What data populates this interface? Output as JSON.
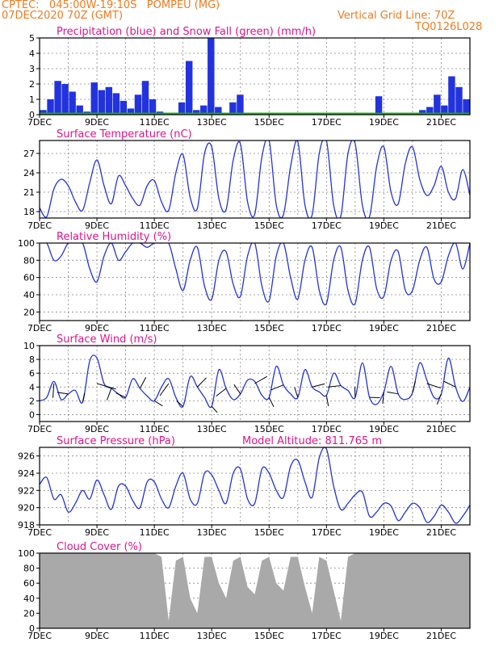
{
  "header": {
    "line1": "CPTEC:   045:00W-19:10S   POMPEU (MG)",
    "line2": "07DEC2020 70Z (GMT)",
    "right1": "Vertical Grid Line: 70Z",
    "right2": "TQ0126L028"
  },
  "colors": {
    "series": "#2233dd",
    "snow": "#22aa22",
    "cloud": "#a9a9a9",
    "title": "#e0148a",
    "header": "#f07a1e"
  },
  "x_labels": [
    "7DEC",
    "9DEC",
    "11DEC",
    "13DEC",
    "15DEC",
    "17DEC",
    "19DEC",
    "21DEC"
  ],
  "chart_data": [
    {
      "type": "bar",
      "title": "Precipitation (blue) and Snow Fall (green) (mm/h)",
      "ylim": [
        0,
        5
      ],
      "yticks": [
        0,
        1,
        2,
        3,
        4,
        5
      ],
      "x": [
        "7DEC",
        "7DEC",
        "7DEC",
        "8DEC",
        "8DEC",
        "8DEC",
        "8DEC",
        "9DEC",
        "9DEC",
        "9DEC",
        "9DEC",
        "10DEC",
        "10DEC",
        "10DEC",
        "10DEC",
        "11DEC",
        "11DEC",
        "11DEC",
        "11DEC",
        "12DEC",
        "12DEC",
        "12DEC",
        "12DEC",
        "13DEC",
        "13DEC",
        "13DEC",
        "13DEC",
        "14DEC",
        "14DEC",
        "14DEC",
        "14DEC",
        "15DEC",
        "15DEC",
        "15DEC",
        "15DEC",
        "16DEC",
        "16DEC",
        "16DEC",
        "16DEC",
        "17DEC",
        "17DEC",
        "17DEC",
        "17DEC",
        "18DEC",
        "18DEC",
        "18DEC",
        "18DEC",
        "19DEC",
        "19DEC",
        "19DEC",
        "19DEC",
        "20DEC",
        "20DEC",
        "20DEC",
        "20DEC",
        "21DEC",
        "21DEC",
        "21DEC",
        "21DEC"
      ],
      "values": [
        0.3,
        1.0,
        2.2,
        2.0,
        1.5,
        0.6,
        0.2,
        2.1,
        1.6,
        1.8,
        1.4,
        0.9,
        0.4,
        1.3,
        2.2,
        1.0,
        0.2,
        0,
        0,
        0.8,
        3.5,
        0.3,
        0.6,
        5.0,
        0.5,
        0,
        0.8,
        1.3,
        0,
        0,
        0,
        0,
        0,
        0,
        0,
        0,
        0,
        0,
        0,
        0,
        0,
        0,
        0,
        0,
        0,
        0,
        1.2,
        0,
        0,
        0,
        0,
        0,
        0.3,
        0.5,
        1.3,
        0.6,
        2.5,
        1.8,
        1.0
      ],
      "series": [
        {
          "name": "Precipitation (blue)"
        },
        {
          "name": "Snow Fall (green)"
        }
      ]
    },
    {
      "type": "line",
      "title": "Surface Temperature (nC)",
      "ylim": [
        17,
        29
      ],
      "yticks": [
        18,
        21,
        24,
        27
      ],
      "x_days": [
        7.0,
        7.25,
        7.5,
        7.75,
        8.0,
        8.25,
        8.5,
        8.75,
        9.0,
        9.25,
        9.5,
        9.75,
        10.0,
        10.25,
        10.5,
        10.75,
        11.0,
        11.25,
        11.5,
        11.75,
        12.0,
        12.25,
        12.5,
        12.75,
        13.0,
        13.25,
        13.5,
        13.75,
        14.0,
        14.25,
        14.5,
        14.75,
        15.0,
        15.25,
        15.5,
        15.75,
        16.0,
        16.25,
        16.5,
        16.75,
        17.0,
        17.25,
        17.5,
        17.75,
        18.0,
        18.25,
        18.5,
        18.75,
        19.0,
        19.25,
        19.5,
        19.75,
        20.0,
        20.25,
        20.5,
        20.75,
        21.0,
        21.25,
        21.5,
        21.75,
        22.0
      ],
      "values": [
        18.6,
        17.2,
        21.5,
        23.0,
        22.0,
        19.5,
        18.2,
        22.5,
        26.0,
        22.0,
        19.2,
        23.5,
        22.0,
        20.0,
        19.0,
        22.0,
        22.8,
        19.5,
        18.2,
        24.0,
        26.8,
        20.2,
        18.5,
        27.0,
        28.0,
        20.0,
        18.3,
        26.0,
        28.5,
        19.5,
        17.6,
        26.5,
        29.0,
        19.0,
        17.5,
        25.0,
        28.8,
        19.0,
        17.5,
        27.0,
        29.0,
        19.0,
        17.3,
        27.0,
        28.5,
        19.0,
        17.2,
        25.0,
        28.0,
        21.0,
        19.2,
        25.5,
        28.0,
        23.0,
        20.5,
        22.0,
        25.0,
        21.0,
        20.0,
        24.5,
        20.5
      ]
    },
    {
      "type": "line",
      "title": "Relative Humidity (%)",
      "ylim": [
        10,
        100
      ],
      "yticks": [
        20,
        40,
        60,
        80,
        100
      ],
      "x_days": [
        7.0,
        7.25,
        7.5,
        7.75,
        8.0,
        8.25,
        8.5,
        8.75,
        9.0,
        9.25,
        9.5,
        9.75,
        10.0,
        10.25,
        10.5,
        10.75,
        11.0,
        11.25,
        11.5,
        11.75,
        12.0,
        12.25,
        12.5,
        12.75,
        13.0,
        13.25,
        13.5,
        13.75,
        14.0,
        14.25,
        14.5,
        14.75,
        15.0,
        15.25,
        15.5,
        15.75,
        16.0,
        16.25,
        16.5,
        16.75,
        17.0,
        17.25,
        17.5,
        17.75,
        18.0,
        18.25,
        18.5,
        18.75,
        19.0,
        19.25,
        19.5,
        19.75,
        20.0,
        20.25,
        20.5,
        20.75,
        21.0,
        21.25,
        21.5,
        21.75,
        22.0
      ],
      "values": [
        100,
        100,
        80,
        85,
        100,
        100,
        100,
        70,
        55,
        85,
        100,
        80,
        90,
        100,
        100,
        95,
        100,
        100,
        100,
        70,
        45,
        80,
        95,
        50,
        35,
        80,
        90,
        52,
        38,
        85,
        100,
        50,
        33,
        85,
        100,
        60,
        35,
        80,
        95,
        45,
        30,
        80,
        95,
        45,
        30,
        80,
        95,
        47,
        38,
        80,
        90,
        45,
        45,
        80,
        95,
        58,
        55,
        85,
        100,
        70,
        100
      ]
    },
    {
      "type": "line",
      "title": "Surface Wind (m/s)",
      "ylim": [
        -1,
        10
      ],
      "yticks": [
        0,
        2,
        4,
        6,
        8,
        10
      ],
      "x_days": [
        7.0,
        7.25,
        7.5,
        7.75,
        8.0,
        8.25,
        8.5,
        8.75,
        9.0,
        9.25,
        9.5,
        9.75,
        10.0,
        10.25,
        10.5,
        10.75,
        11.0,
        11.25,
        11.5,
        11.75,
        12.0,
        12.25,
        12.5,
        12.75,
        13.0,
        13.25,
        13.5,
        13.75,
        14.0,
        14.25,
        14.5,
        14.75,
        15.0,
        15.25,
        15.5,
        15.75,
        16.0,
        16.25,
        16.5,
        16.75,
        17.0,
        17.25,
        17.5,
        17.75,
        18.0,
        18.25,
        18.5,
        18.75,
        19.0,
        19.25,
        19.5,
        19.75,
        20.0,
        20.25,
        20.5,
        20.75,
        21.0,
        21.25,
        21.5,
        21.75,
        22.0
      ],
      "values": [
        2.0,
        2.5,
        4.8,
        2.2,
        3.0,
        3.5,
        1.8,
        7.8,
        8.2,
        4.5,
        3.8,
        3.0,
        2.5,
        5.2,
        3.8,
        2.7,
        2.0,
        4.0,
        5.2,
        2.5,
        1.2,
        5.5,
        4.0,
        2.5,
        1.2,
        6.5,
        3.8,
        2.2,
        3.0,
        5.0,
        4.8,
        2.8,
        2.5,
        7.0,
        4.3,
        3.0,
        2.5,
        6.5,
        4.0,
        3.3,
        2.8,
        6.0,
        4.2,
        3.5,
        2.5,
        7.5,
        2.5,
        1.5,
        3.3,
        7.0,
        3.0,
        2.2,
        3.2,
        7.5,
        5.0,
        2.5,
        3.0,
        8.2,
        4.0,
        1.9,
        4.0
      ]
    },
    {
      "type": "line",
      "title": "Surface Pressure (hPa)",
      "annotation": "Model Altitude: 811.765 m",
      "ylim": [
        918,
        927
      ],
      "yticks": [
        918,
        920,
        922,
        924,
        926
      ],
      "x_days": [
        7.0,
        7.25,
        7.5,
        7.75,
        8.0,
        8.25,
        8.5,
        8.75,
        9.0,
        9.25,
        9.5,
        9.75,
        10.0,
        10.25,
        10.5,
        10.75,
        11.0,
        11.25,
        11.5,
        11.75,
        12.0,
        12.25,
        12.5,
        12.75,
        13.0,
        13.25,
        13.5,
        13.75,
        14.0,
        14.25,
        14.5,
        14.75,
        15.0,
        15.25,
        15.5,
        15.75,
        16.0,
        16.25,
        16.5,
        16.75,
        17.0,
        17.25,
        17.5,
        17.75,
        18.0,
        18.25,
        18.5,
        18.75,
        19.0,
        19.25,
        19.5,
        19.75,
        20.0,
        20.25,
        20.5,
        20.75,
        21.0,
        21.25,
        21.5,
        21.75,
        22.0
      ],
      "values": [
        922.7,
        923.5,
        921.0,
        921.5,
        919.5,
        920.5,
        922.0,
        921.0,
        923.2,
        921.5,
        919.8,
        922.5,
        922.5,
        920.8,
        920.0,
        923.0,
        923.0,
        921.0,
        920.0,
        922.5,
        924.0,
        921.0,
        920.5,
        924.0,
        923.8,
        922.0,
        920.5,
        924.0,
        924.5,
        921.0,
        920.5,
        924.5,
        924.0,
        922.0,
        921.2,
        924.8,
        925.5,
        923.0,
        921.2,
        925.8,
        926.8,
        922.5,
        919.8,
        920.5,
        921.5,
        921.8,
        919.0,
        919.5,
        920.5,
        920.2,
        918.5,
        919.5,
        920.5,
        920.0,
        918.3,
        919.0,
        920.3,
        919.5,
        918.2,
        919.0,
        920.3
      ]
    },
    {
      "type": "area",
      "title": "Cloud Cover (%)",
      "ylim": [
        0,
        100
      ],
      "yticks": [
        0,
        20,
        40,
        60,
        80,
        100
      ],
      "x_days": [
        7.0,
        7.25,
        7.5,
        7.75,
        8.0,
        8.25,
        8.5,
        8.75,
        9.0,
        9.25,
        9.5,
        9.75,
        10.0,
        10.25,
        10.5,
        10.75,
        11.0,
        11.25,
        11.5,
        11.75,
        12.0,
        12.25,
        12.5,
        12.75,
        13.0,
        13.25,
        13.5,
        13.75,
        14.0,
        14.25,
        14.5,
        14.75,
        15.0,
        15.25,
        15.5,
        15.75,
        16.0,
        16.25,
        16.5,
        16.75,
        17.0,
        17.25,
        17.5,
        17.75,
        18.0,
        18.25,
        18.5,
        18.75,
        19.0,
        19.25,
        19.5,
        19.75,
        20.0,
        20.25,
        20.5,
        20.75,
        21.0,
        21.25,
        21.5,
        21.75,
        22.0
      ],
      "values": [
        100,
        100,
        100,
        100,
        100,
        100,
        100,
        100,
        100,
        100,
        100,
        100,
        100,
        100,
        100,
        100,
        100,
        95,
        10,
        90,
        95,
        40,
        20,
        95,
        95,
        60,
        40,
        90,
        95,
        55,
        45,
        90,
        95,
        60,
        50,
        95,
        95,
        55,
        20,
        95,
        90,
        50,
        10,
        95,
        100,
        100,
        100,
        100,
        100,
        100,
        100,
        100,
        100,
        100,
        100,
        100,
        100,
        100,
        100,
        100,
        100
      ]
    }
  ]
}
